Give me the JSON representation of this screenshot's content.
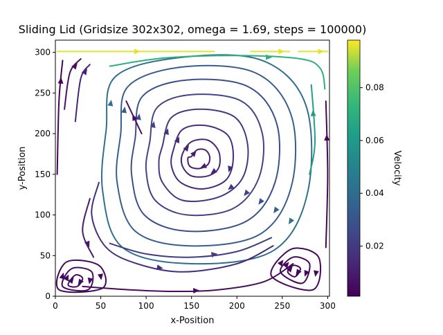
{
  "chart_data": {
    "type": "streamplot",
    "title": "Sliding Lid (Gridsize 302x302, omega = 1.69, steps = 100000)",
    "xlabel": "x-Position",
    "ylabel": "y-Position",
    "xlim": [
      0,
      302
    ],
    "ylim": [
      0,
      315
    ],
    "xticks": [
      0,
      50,
      100,
      150,
      200,
      250,
      300
    ],
    "yticks": [
      0,
      50,
      100,
      150,
      200,
      250,
      300
    ],
    "colorbar": {
      "label": "Velocity",
      "colormap": "viridis",
      "range": [
        0.001,
        0.098
      ],
      "ticks": [
        0.02,
        0.04,
        0.06,
        0.08
      ]
    },
    "main_vortex": {
      "center": [
        160,
        168
      ],
      "rotation": "clockwise",
      "loops": [
        {
          "speed": 0.01,
          "pts": [
            [
              150,
              172
            ],
            [
              156,
              180
            ],
            [
              165,
              180
            ],
            [
              170,
              172
            ],
            [
              168,
              162
            ],
            [
              158,
              157
            ],
            [
              148,
              160
            ],
            [
              146,
              170
            ]
          ]
        },
        {
          "speed": 0.012,
          "pts": [
            [
              140,
              175
            ],
            [
              150,
              190
            ],
            [
              168,
              192
            ],
            [
              180,
              178
            ],
            [
              180,
              158
            ],
            [
              168,
              148
            ],
            [
              150,
              148
            ],
            [
              140,
              160
            ]
          ]
        },
        {
          "speed": 0.015,
          "pts": [
            [
              130,
              180
            ],
            [
              140,
              205
            ],
            [
              165,
              210
            ],
            [
              190,
              198
            ],
            [
              196,
              170
            ],
            [
              188,
              143
            ],
            [
              162,
              132
            ],
            [
              138,
              140
            ],
            [
              128,
              160
            ]
          ]
        },
        {
          "speed": 0.019,
          "pts": [
            [
              118,
              185
            ],
            [
              128,
              220
            ],
            [
              160,
              230
            ],
            [
              198,
              220
            ],
            [
              212,
              185
            ],
            [
              206,
              145
            ],
            [
              180,
              122
            ],
            [
              140,
              118
            ],
            [
              118,
              140
            ],
            [
              114,
              165
            ]
          ]
        },
        {
          "speed": 0.023,
          "pts": [
            [
              104,
              190
            ],
            [
              112,
              232
            ],
            [
              150,
              248
            ],
            [
              205,
              240
            ],
            [
              228,
              200
            ],
            [
              224,
              145
            ],
            [
              196,
              108
            ],
            [
              145,
              100
            ],
            [
              110,
              118
            ],
            [
              100,
              155
            ]
          ]
        },
        {
          "speed": 0.028,
          "pts": [
            [
              88,
              195
            ],
            [
              96,
              246
            ],
            [
              145,
              266
            ],
            [
              212,
              258
            ],
            [
              244,
              212
            ],
            [
              242,
              140
            ],
            [
              210,
              92
            ],
            [
              145,
              80
            ],
            [
              98,
              100
            ],
            [
              84,
              150
            ]
          ]
        },
        {
          "speed": 0.033,
          "pts": [
            [
              72,
              200
            ],
            [
              80,
              258
            ],
            [
              140,
              282
            ],
            [
              220,
              275
            ],
            [
              260,
              222
            ],
            [
              260,
              135
            ],
            [
              225,
              76
            ],
            [
              148,
              62
            ],
            [
              88,
              80
            ],
            [
              68,
              140
            ]
          ]
        },
        {
          "speed": 0.04,
          "pts": [
            [
              56,
              205
            ],
            [
              66,
              270
            ],
            [
              140,
              294
            ],
            [
              228,
              290
            ],
            [
              276,
              235
            ],
            [
              278,
              128
            ],
            [
              240,
              56
            ],
            [
              150,
              40
            ],
            [
              74,
              60
            ],
            [
              52,
              130
            ]
          ]
        }
      ]
    },
    "outer_streamlines": [
      {
        "speed": 0.096,
        "pts": [
          [
            2,
            301
          ],
          [
            60,
            301
          ],
          [
            120,
            301
          ],
          [
            175,
            301
          ]
        ]
      },
      {
        "speed": 0.096,
        "pts": [
          [
            215,
            301
          ],
          [
            240,
            301
          ],
          [
            258,
            301
          ]
        ]
      },
      {
        "speed": 0.096,
        "pts": [
          [
            268,
            301
          ],
          [
            285,
            301
          ],
          [
            300,
            301
          ]
        ]
      },
      {
        "speed": 0.07,
        "pts": [
          [
            60,
            283
          ],
          [
            120,
            293
          ],
          [
            200,
            296
          ],
          [
            270,
            292
          ],
          [
            292,
            280
          ],
          [
            297,
            255
          ]
        ]
      },
      {
        "speed": 0.006,
        "pts": [
          [
            10,
            230
          ],
          [
            16,
            275
          ],
          [
            28,
            292
          ]
        ]
      },
      {
        "speed": 0.012,
        "pts": [
          [
            22,
            215
          ],
          [
            28,
            268
          ],
          [
            38,
            285
          ]
        ]
      },
      {
        "speed": 0.008,
        "pts": [
          [
            38,
            120
          ],
          [
            30,
            80
          ],
          [
            42,
            48
          ]
        ]
      },
      {
        "speed": 0.015,
        "pts": [
          [
            48,
            140
          ],
          [
            40,
            100
          ],
          [
            56,
            60
          ],
          [
            90,
            40
          ],
          [
            140,
            30
          ],
          [
            200,
            40
          ],
          [
            240,
            62
          ]
        ]
      },
      {
        "speed": 0.02,
        "pts": [
          [
            60,
            65
          ],
          [
            100,
            52
          ],
          [
            150,
            48
          ],
          [
            200,
            55
          ],
          [
            238,
            72
          ]
        ]
      },
      {
        "speed": 0.004,
        "pts": [
          [
            30,
            12
          ],
          [
            80,
            8
          ],
          [
            130,
            6
          ],
          [
            180,
            8
          ],
          [
            230,
            18
          ],
          [
            262,
            40
          ]
        ]
      },
      {
        "speed": 0.006,
        "pts": [
          [
            95,
            200
          ],
          [
            78,
            240
          ]
        ]
      },
      {
        "speed": 0.062,
        "pts": [
          [
            280,
            150
          ],
          [
            286,
            190
          ],
          [
            282,
            260
          ]
        ]
      },
      {
        "speed": 0.002,
        "pts": [
          [
            2,
            150
          ],
          [
            4,
            240
          ],
          [
            8,
            290
          ]
        ]
      },
      {
        "speed": 0.002,
        "pts": [
          [
            298,
            60
          ],
          [
            300,
            150
          ],
          [
            298,
            240
          ]
        ]
      }
    ],
    "corner_vortices": [
      {
        "name": "bottom-left",
        "center": [
          22,
          20
        ],
        "loops": [
          {
            "speed": 0.004,
            "pts": [
              [
                14,
                14
              ],
              [
                22,
                26
              ],
              [
                30,
                22
              ],
              [
                24,
                12
              ]
            ]
          },
          {
            "speed": 0.004,
            "pts": [
              [
                8,
                12
              ],
              [
                18,
                34
              ],
              [
                40,
                30
              ],
              [
                36,
                8
              ]
            ]
          },
          {
            "speed": 0.003,
            "pts": [
              [
                4,
                8
              ],
              [
                12,
                42
              ],
              [
                48,
                38
              ],
              [
                52,
                10
              ]
            ]
          }
        ]
      },
      {
        "name": "bottom-right",
        "center": [
          262,
          30
        ],
        "loops": [
          {
            "speed": 0.002,
            "pts": [
              [
                256,
                30
              ],
              [
                262,
                38
              ],
              [
                270,
                34
              ],
              [
                264,
                24
              ]
            ]
          },
          {
            "speed": 0.003,
            "pts": [
              [
                248,
                30
              ],
              [
                262,
                48
              ],
              [
                280,
                40
              ],
              [
                272,
                16
              ]
            ]
          },
          {
            "speed": 0.003,
            "pts": [
              [
                238,
                25
              ],
              [
                260,
                58
              ],
              [
                290,
                48
              ],
              [
                284,
                8
              ]
            ]
          }
        ]
      }
    ]
  }
}
